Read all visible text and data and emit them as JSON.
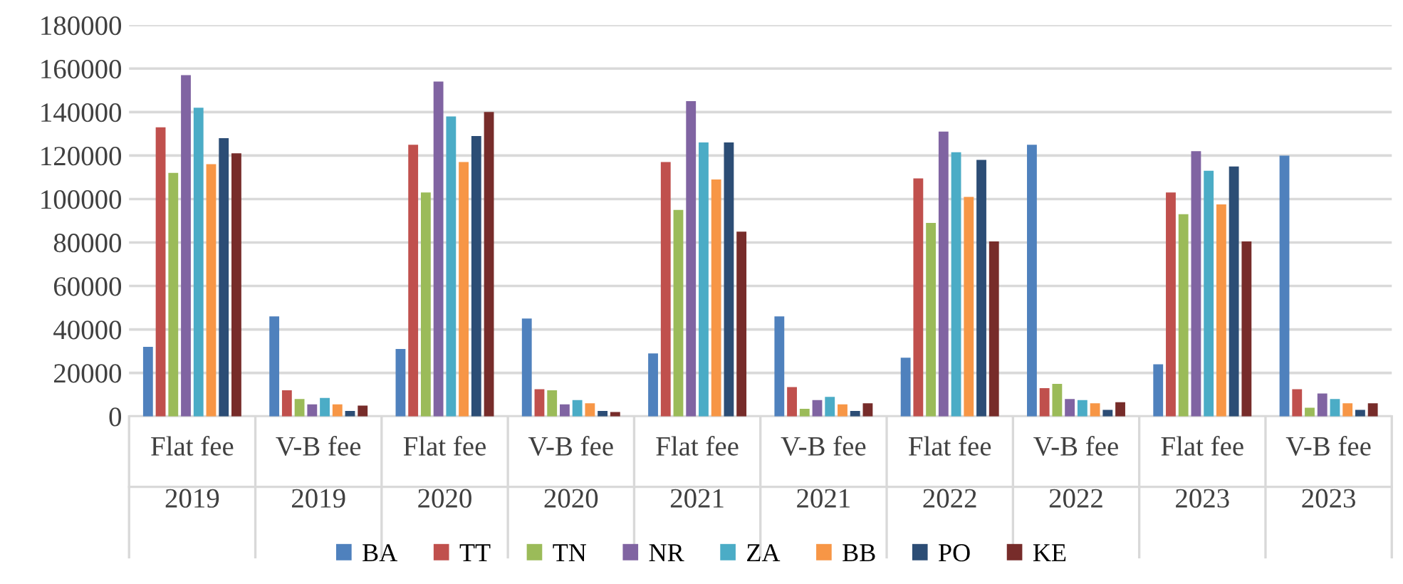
{
  "chart_data": {
    "type": "bar",
    "categories": [
      "Flat fee\n2019",
      "V-B fee\n2019",
      "Flat fee\n2020",
      "V-B fee\n2020",
      "Flat fee\n2021",
      "V-B fee\n2021",
      "Flat fee\n2022",
      "V-B fee\n2022",
      "Flat fee\n2023",
      "V-B fee\n2023"
    ],
    "series": [
      {
        "name": "BA",
        "color": "#4f81bd",
        "values": [
          32000,
          46000,
          31000,
          45000,
          29000,
          46000,
          27000,
          125000,
          24000,
          120000
        ]
      },
      {
        "name": "TT",
        "color": "#c0504d",
        "values": [
          133000,
          12000,
          125000,
          12500,
          117000,
          13500,
          109500,
          13000,
          103000,
          12500
        ]
      },
      {
        "name": "TN",
        "color": "#9bbb59",
        "values": [
          112000,
          8000,
          103000,
          12000,
          95000,
          3500,
          89000,
          15000,
          93000,
          4000
        ]
      },
      {
        "name": "NR",
        "color": "#8064a2",
        "values": [
          157000,
          5500,
          154000,
          5500,
          145000,
          7500,
          131000,
          8000,
          122000,
          10500
        ]
      },
      {
        "name": "ZA",
        "color": "#4bacc6",
        "values": [
          142000,
          8500,
          138000,
          7500,
          126000,
          9000,
          121500,
          7500,
          113000,
          8000
        ]
      },
      {
        "name": "BB",
        "color": "#f79646",
        "values": [
          116000,
          5500,
          117000,
          6000,
          109000,
          5500,
          101000,
          6000,
          97500,
          6000
        ]
      },
      {
        "name": "PO",
        "color": "#2c4d75",
        "values": [
          128000,
          2500,
          129000,
          2500,
          126000,
          2500,
          118000,
          3000,
          115000,
          3000
        ]
      },
      {
        "name": "KE",
        "color": "#772c2a",
        "values": [
          121000,
          5000,
          140000,
          2000,
          85000,
          6000,
          80500,
          6500,
          80500,
          6000
        ]
      }
    ],
    "ylim": [
      0,
      180000
    ],
    "yticks": [
      0,
      20000,
      40000,
      60000,
      80000,
      100000,
      120000,
      140000,
      160000,
      180000
    ],
    "grid": "y",
    "legend": "bottom"
  }
}
